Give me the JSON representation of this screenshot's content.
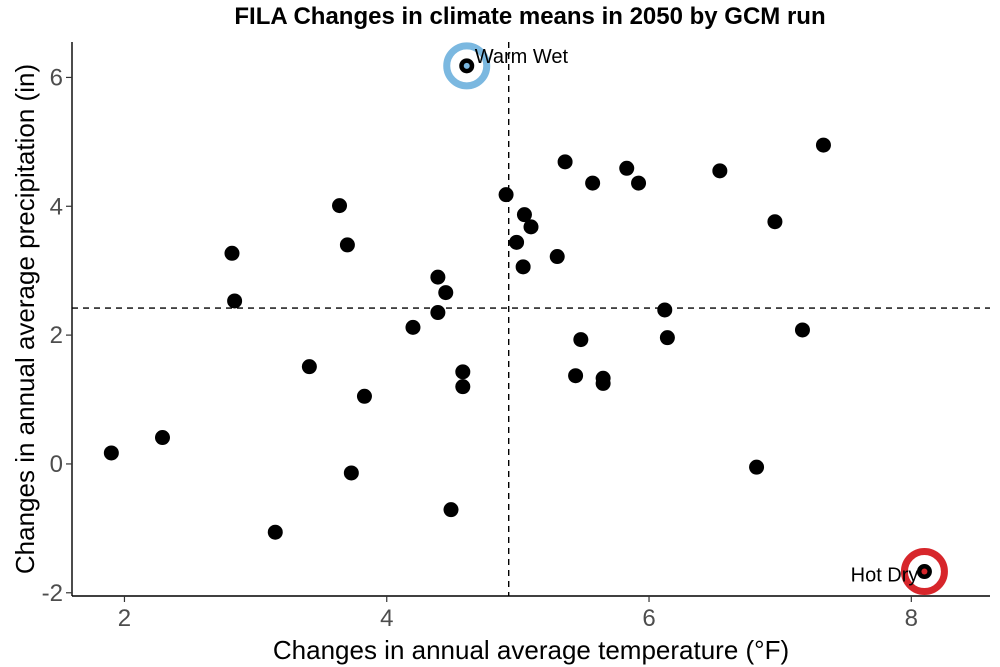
{
  "chart_data": {
    "type": "scatter",
    "title": "FILA Changes in climate means in 2050 by GCM run",
    "xlabel": "Changes in annual average temperature (°F)",
    "ylabel": "Changes in annual average precipitation (in)",
    "xlim": [
      1.6,
      8.6
    ],
    "ylim": [
      -2.05,
      6.55
    ],
    "x_ticks": [
      2,
      4,
      6,
      8
    ],
    "y_ticks": [
      -2,
      0,
      2,
      4,
      6
    ],
    "x_tick_labels": [
      "2",
      "4",
      "6",
      "8"
    ],
    "y_tick_labels": [
      "-2",
      "0",
      "2",
      "4",
      "6"
    ],
    "grid": false,
    "reference_lines": {
      "x": 4.93,
      "y": 2.42
    },
    "points": [
      {
        "x": 1.9,
        "y": 0.17
      },
      {
        "x": 2.29,
        "y": 0.41
      },
      {
        "x": 2.82,
        "y": 3.27
      },
      {
        "x": 2.84,
        "y": 2.53
      },
      {
        "x": 3.15,
        "y": -1.06
      },
      {
        "x": 3.41,
        "y": 1.51
      },
      {
        "x": 3.64,
        "y": 4.01
      },
      {
        "x": 3.7,
        "y": 3.4
      },
      {
        "x": 3.73,
        "y": -0.14
      },
      {
        "x": 3.83,
        "y": 1.05
      },
      {
        "x": 4.2,
        "y": 2.12
      },
      {
        "x": 4.39,
        "y": 2.35
      },
      {
        "x": 4.39,
        "y": 2.9
      },
      {
        "x": 4.45,
        "y": 2.66
      },
      {
        "x": 4.49,
        "y": -0.71
      },
      {
        "x": 4.58,
        "y": 1.43
      },
      {
        "x": 4.58,
        "y": 1.2
      },
      {
        "x": 4.61,
        "y": 6.18
      },
      {
        "x": 4.91,
        "y": 4.18
      },
      {
        "x": 4.99,
        "y": 3.44
      },
      {
        "x": 5.05,
        "y": 3.87
      },
      {
        "x": 5.04,
        "y": 3.06
      },
      {
        "x": 5.1,
        "y": 3.68
      },
      {
        "x": 5.3,
        "y": 3.22
      },
      {
        "x": 5.36,
        "y": 4.69
      },
      {
        "x": 5.44,
        "y": 1.37
      },
      {
        "x": 5.48,
        "y": 1.93
      },
      {
        "x": 5.57,
        "y": 4.36
      },
      {
        "x": 5.65,
        "y": 1.33
      },
      {
        "x": 5.65,
        "y": 1.25
      },
      {
        "x": 5.83,
        "y": 4.59
      },
      {
        "x": 5.92,
        "y": 4.36
      },
      {
        "x": 6.12,
        "y": 2.39
      },
      {
        "x": 6.14,
        "y": 1.96
      },
      {
        "x": 6.54,
        "y": 4.55
      },
      {
        "x": 6.82,
        "y": -0.05
      },
      {
        "x": 6.96,
        "y": 3.76
      },
      {
        "x": 7.17,
        "y": 2.08
      },
      {
        "x": 7.33,
        "y": 4.95
      },
      {
        "x": 8.1,
        "y": -1.67
      }
    ],
    "highlights": [
      {
        "label": "Warm Wet",
        "x": 4.61,
        "y": 6.18,
        "color": "#7bb8e0",
        "label_side": "right"
      },
      {
        "label": "Hot Dry",
        "x": 8.1,
        "y": -1.67,
        "color": "#d7262b",
        "label_side": "left"
      }
    ]
  }
}
